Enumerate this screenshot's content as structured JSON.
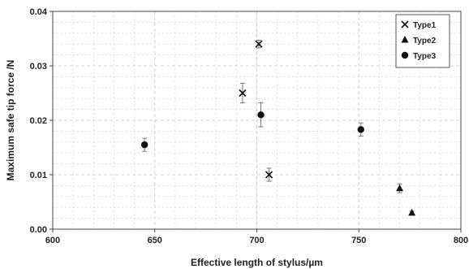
{
  "chart_data": {
    "type": "scatter",
    "xlabel": "Effective length of stylus/µm",
    "ylabel": "Maximum safe tip force /N",
    "xlim": [
      600,
      800
    ],
    "ylim": [
      0,
      0.04
    ],
    "x_ticks": [
      600,
      650,
      700,
      750,
      800
    ],
    "y_ticks": [
      0,
      0.01,
      0.02,
      0.03,
      0.04
    ],
    "x_tick_labels": [
      "600",
      "650",
      "700",
      "750",
      "800"
    ],
    "y_tick_labels": [
      "0.00",
      "0.01",
      "0.02",
      "0.03",
      "0.04"
    ],
    "grid": "dashed major and minor gridlines",
    "legend_position": "top-right",
    "series": [
      {
        "name": "Type1",
        "marker": "x",
        "points": [
          {
            "x": 701,
            "y": 0.034,
            "err": 0.0007
          },
          {
            "x": 693,
            "y": 0.025,
            "err": 0.0018
          },
          {
            "x": 706,
            "y": 0.01,
            "err": 0.0012
          }
        ]
      },
      {
        "name": "Type2",
        "marker": "triangle",
        "points": [
          {
            "x": 770,
            "y": 0.0075,
            "err": 0.0008
          },
          {
            "x": 776,
            "y": 0.003,
            "err": 0.0003
          }
        ]
      },
      {
        "name": "Type3",
        "marker": "circle",
        "points": [
          {
            "x": 645,
            "y": 0.0155,
            "err": 0.0012
          },
          {
            "x": 702,
            "y": 0.021,
            "err": 0.0022
          },
          {
            "x": 751,
            "y": 0.0183,
            "err": 0.0012
          }
        ]
      }
    ],
    "colors": {
      "marker": "#111111",
      "error_bar": "#777777",
      "grid": "#d0d0d0",
      "axis": "#444444"
    }
  }
}
